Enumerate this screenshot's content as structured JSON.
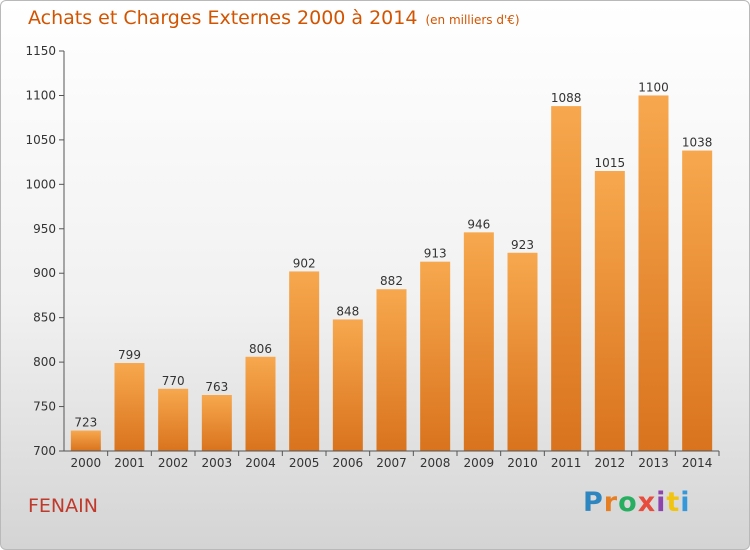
{
  "header": {
    "title": "Achats et Charges Externes 2000 à 2014",
    "unit": "(en milliers d'€)"
  },
  "commune": "FENAIN",
  "logo": {
    "text": "Proxiti",
    "colors": [
      "#2e86c1",
      "#e67e22",
      "#27ae60",
      "#e74c3c",
      "#8e44ad",
      "#f1c40f",
      "#3498db"
    ]
  },
  "colors": {
    "bar_top": "#f7a84e",
    "bar_bottom": "#d9731d",
    "title": "#d35400",
    "commune": "#c0392b"
  },
  "chart_data": {
    "type": "bar",
    "title": "Achats et Charges Externes 2000 à 2014",
    "subtitle": "(en milliers d'€)",
    "categories": [
      "2000",
      "2001",
      "2002",
      "2003",
      "2004",
      "2005",
      "2006",
      "2007",
      "2008",
      "2009",
      "2010",
      "2011",
      "2012",
      "2013",
      "2014"
    ],
    "values": [
      723,
      799,
      770,
      763,
      806,
      902,
      848,
      882,
      913,
      946,
      923,
      1088,
      1015,
      1100,
      1038
    ],
    "ylim": [
      700,
      1150
    ],
    "yticks": [
      700,
      750,
      800,
      850,
      900,
      950,
      1000,
      1050,
      1100,
      1150
    ],
    "grid": false,
    "xlabel": "",
    "ylabel": ""
  }
}
